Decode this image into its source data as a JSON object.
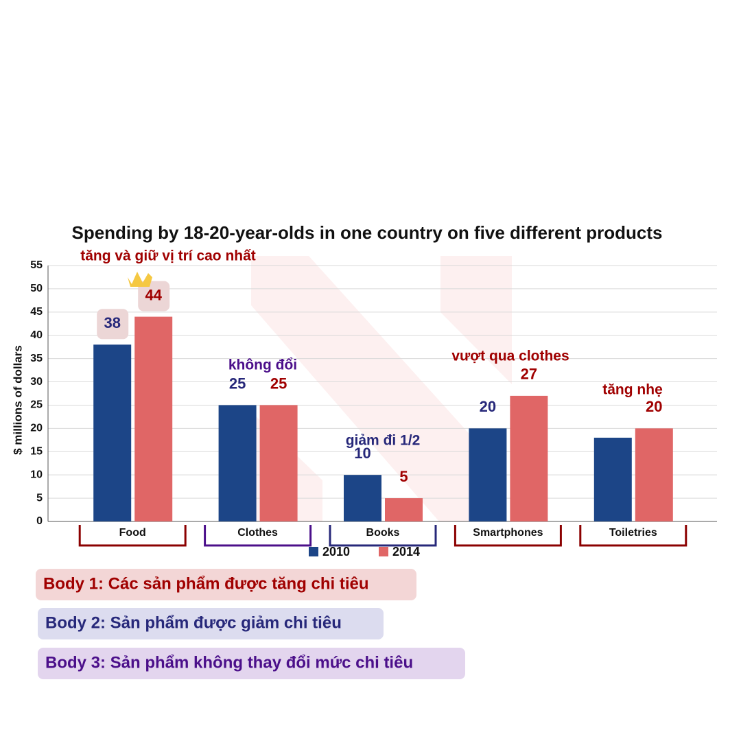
{
  "chart_data": {
    "type": "bar",
    "title": "Spending by 18-20-year-olds in one country on five different products",
    "y_label": "$ millions of dollars",
    "categories": [
      "Food",
      "Clothes",
      "Books",
      "Smartphones",
      "Toiletries"
    ],
    "series": [
      {
        "name": "2010",
        "color": "#1c4587",
        "values": [
          38,
          25,
          10,
          20,
          18
        ],
        "value_labels": [
          "38",
          "25",
          "10",
          "20",
          null
        ]
      },
      {
        "name": "2014",
        "color": "#e06666",
        "values": [
          44,
          25,
          5,
          27,
          20
        ],
        "value_labels": [
          "44",
          "25",
          "5",
          "27",
          "20"
        ]
      }
    ],
    "ylim": [
      0,
      55
    ],
    "yticks": [
      0,
      5,
      10,
      15,
      20,
      25,
      30,
      35,
      40,
      45,
      50,
      55
    ],
    "grid": true,
    "annotations": [
      "tăng và giữ vị trí cao nhất",
      "không đổi",
      "giảm đi 1/2",
      "vượt qua clothes",
      "tăng nhẹ"
    ]
  },
  "notes": [
    "Body 1: Các sản phẩm được tăng chi tiêu",
    "Body 2: Sản phẩm được giảm chi tiêu",
    "Body 3: Sản phẩm không thay đổi mức chi tiêu"
  ]
}
